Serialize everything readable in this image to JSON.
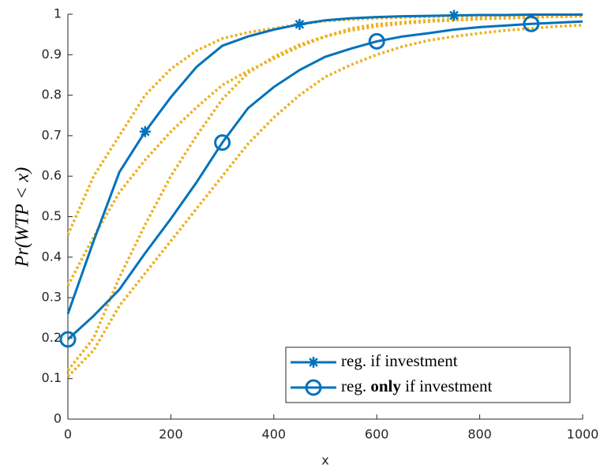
{
  "chart_data": {
    "type": "line",
    "xlabel": "x",
    "ylabel": "Pr(WTP < x)",
    "x": [
      0,
      50,
      100,
      150,
      200,
      250,
      300,
      350,
      400,
      450,
      500,
      550,
      600,
      650,
      700,
      750,
      800,
      850,
      900,
      950,
      1000
    ],
    "series": [
      {
        "name": "reg. if investment",
        "color": "#0072BD",
        "marker": "asterisk",
        "marker_every": 6,
        "marker_offset": 3,
        "values": [
          0.26,
          0.44,
          0.61,
          0.71,
          0.795,
          0.87,
          0.922,
          0.945,
          0.962,
          0.975,
          0.985,
          0.99,
          0.993,
          0.995,
          0.996,
          0.997,
          0.998,
          0.998,
          0.999,
          0.999,
          0.999
        ]
      },
      {
        "name": "reg. only if investment",
        "emphasis": "only",
        "color": "#0072BD",
        "marker": "circle",
        "marker_every": 6,
        "marker_offset": 0,
        "values": [
          0.197,
          0.255,
          0.32,
          0.41,
          0.495,
          0.585,
          0.683,
          0.768,
          0.82,
          0.862,
          0.895,
          0.915,
          0.933,
          0.945,
          0.953,
          0.962,
          0.968,
          0.972,
          0.976,
          0.979,
          0.982
        ]
      }
    ],
    "bands": {
      "color": "#EDB120",
      "lines": [
        [
          0.455,
          0.6,
          0.7,
          0.8,
          0.865,
          0.91,
          0.94,
          0.955,
          0.965,
          0.975,
          0.983,
          0.987,
          0.99,
          0.992,
          0.994,
          0.995,
          0.996,
          0.997,
          0.998,
          0.998,
          0.999
        ],
        [
          0.33,
          0.45,
          0.56,
          0.64,
          0.71,
          0.77,
          0.825,
          0.86,
          0.89,
          0.92,
          0.945,
          0.965,
          0.975,
          0.98,
          0.985,
          0.987,
          0.99,
          0.992,
          0.993,
          0.994,
          0.995
        ],
        [
          0.12,
          0.2,
          0.35,
          0.48,
          0.6,
          0.7,
          0.79,
          0.855,
          0.895,
          0.925,
          0.945,
          0.96,
          0.97,
          0.977,
          0.982,
          0.985,
          0.988,
          0.99,
          0.992,
          0.994,
          0.995
        ],
        [
          0.105,
          0.17,
          0.28,
          0.36,
          0.44,
          0.52,
          0.6,
          0.68,
          0.745,
          0.8,
          0.845,
          0.875,
          0.9,
          0.92,
          0.935,
          0.945,
          0.953,
          0.96,
          0.965,
          0.97,
          0.973
        ]
      ]
    },
    "xlim": [
      0,
      1000
    ],
    "xticks": [
      0,
      200,
      400,
      600,
      800,
      1000
    ],
    "ylim": [
      0,
      1
    ],
    "yticks": [
      0,
      0.1,
      0.2,
      0.3,
      0.4,
      0.5,
      0.6,
      0.7,
      0.8,
      0.9,
      1
    ],
    "legend": "lower right"
  }
}
